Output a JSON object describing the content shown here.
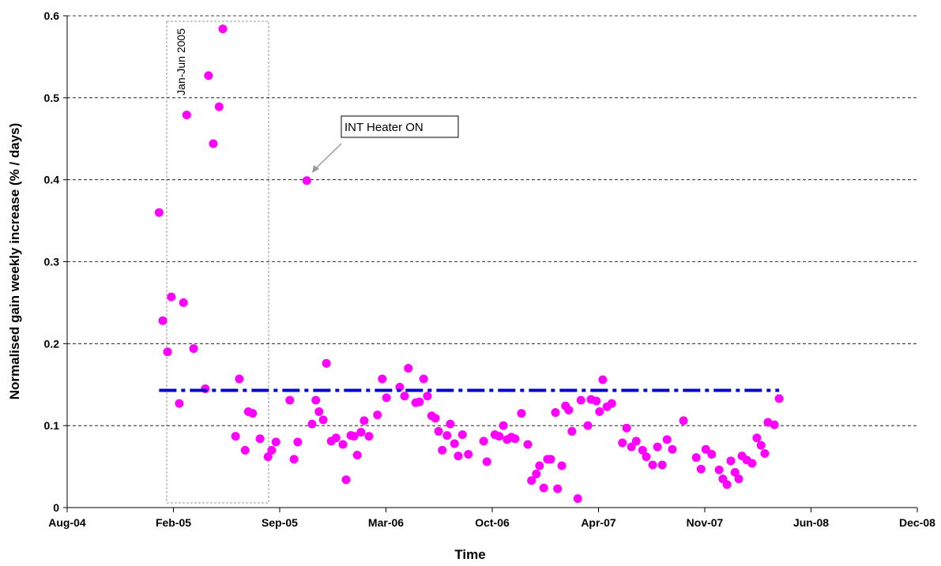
{
  "chart_data": {
    "type": "scatter",
    "x_label": "Time",
    "y_label": "Normalised gain weekly increase (% / days)",
    "annotations": [
      "Jan-Jun 2005",
      "INT Heater ON"
    ],
    "xlim": [
      38200,
      39800
    ],
    "xticks": [
      {
        "value": 38200,
        "label": "Aug-04"
      },
      {
        "value": 38400,
        "label": "Feb-05"
      },
      {
        "value": 38600,
        "label": "Sep-05"
      },
      {
        "value": 38800,
        "label": "Mar-06"
      },
      {
        "value": 39000,
        "label": "Oct-06"
      },
      {
        "value": 39200,
        "label": "Apr-07"
      },
      {
        "value": 39400,
        "label": "Nov-07"
      },
      {
        "value": 39600,
        "label": "Jun-08"
      },
      {
        "value": 39800,
        "label": "Dec-08"
      }
    ],
    "ylim": [
      0,
      0.6
    ],
    "yticks": [
      0,
      0.1,
      0.2,
      0.3,
      0.4,
      0.5,
      0.6
    ],
    "grid": true,
    "series": [
      {
        "color": "#ff00ff",
        "x": [
          38373,
          38380,
          38389,
          38396,
          38411,
          38419,
          38425,
          38438,
          38460,
          38466,
          38475,
          38486,
          38493,
          38517,
          38524,
          38535,
          38541,
          38549,
          38563,
          38578,
          38585,
          38593,
          38619,
          38627,
          38634,
          38651,
          38661,
          38668,
          38674,
          38682,
          38688,
          38697,
          38706,
          38719,
          38725,
          38734,
          38740,
          38746,
          38753,
          38759,
          38768,
          38784,
          38793,
          38801,
          38826,
          38835,
          38842,
          38856,
          38863,
          38871,
          38878,
          38886,
          38893,
          38899,
          38906,
          38915,
          38921,
          38929,
          38936,
          38944,
          38955,
          38984,
          38990,
          39005,
          39013,
          39021,
          39028,
          39036,
          39043,
          39055,
          39067,
          39074,
          39083,
          39089,
          39097,
          39104,
          39110,
          39119,
          39123,
          39131,
          39138,
          39144,
          39150,
          39161,
          39167,
          39180,
          39186,
          39196,
          39202,
          39208,
          39216,
          39225,
          39245,
          39253,
          39262,
          39271,
          39283,
          39290,
          39302,
          39311,
          39320,
          39329,
          39339,
          39360,
          39384,
          39393,
          39402,
          39413,
          39427,
          39434,
          39442,
          39449,
          39457,
          39464,
          39470,
          39479,
          39489,
          39498,
          39506,
          39513,
          39519,
          39531,
          39540
        ],
        "values": [
          0.36,
          0.228,
          0.19,
          0.257,
          0.127,
          0.25,
          0.479,
          0.194,
          0.145,
          0.527,
          0.444,
          0.489,
          0.584,
          0.087,
          0.157,
          0.07,
          0.117,
          0.115,
          0.084,
          0.062,
          0.07,
          0.08,
          0.131,
          0.059,
          0.08,
          0.399,
          0.102,
          0.131,
          0.117,
          0.107,
          0.176,
          0.081,
          0.085,
          0.077,
          0.034,
          0.088,
          0.087,
          0.064,
          0.092,
          0.106,
          0.087,
          0.113,
          0.157,
          0.134,
          0.147,
          0.136,
          0.17,
          0.128,
          0.129,
          0.157,
          0.136,
          0.112,
          0.109,
          0.093,
          0.07,
          0.088,
          0.102,
          0.078,
          0.063,
          0.089,
          0.065,
          0.081,
          0.056,
          0.089,
          0.087,
          0.1,
          0.083,
          0.086,
          0.084,
          0.115,
          0.077,
          0.033,
          0.041,
          0.051,
          0.024,
          0.059,
          0.059,
          0.116,
          0.023,
          0.051,
          0.124,
          0.119,
          0.093,
          0.011,
          0.131,
          0.1,
          0.132,
          0.13,
          0.117,
          0.156,
          0.123,
          0.127,
          0.079,
          0.097,
          0.074,
          0.081,
          0.07,
          0.062,
          0.052,
          0.074,
          0.052,
          0.083,
          0.071,
          0.106,
          0.061,
          0.047,
          0.071,
          0.065,
          0.046,
          0.035,
          0.028,
          0.057,
          0.043,
          0.035,
          0.063,
          0.058,
          0.054,
          0.085,
          0.076,
          0.066,
          0.104,
          0.101,
          0.133
        ]
      },
      {
        "color": "#0000cc",
        "style": "dash-dot",
        "x": [
          38373,
          39540
        ],
        "values": [
          0.143,
          0.143
        ]
      }
    ]
  }
}
